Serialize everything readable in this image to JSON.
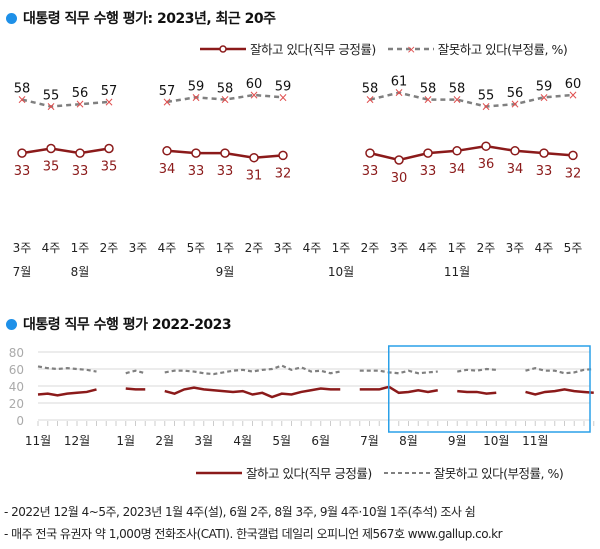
{
  "colors": {
    "accent": "#1e90e8",
    "approve": "#8b1a1a",
    "disapprove": "#808080",
    "marker_x": "#e05050",
    "highlight_box": "#2aa0e8",
    "grid": "#d8d8d8"
  },
  "chart_data": [
    {
      "type": "line",
      "title": "대통령 직무 수행 평가: 2023년, 최근 20주",
      "x_week_labels": [
        "3주",
        "4주",
        "1주",
        "2주",
        "3주",
        "4주",
        "5주",
        "1주",
        "2주",
        "3주",
        "4주",
        "1주",
        "2주",
        "3주",
        "4주",
        "1주",
        "2주",
        "3주",
        "4주",
        "5주"
      ],
      "x_month_labels": [
        {
          "index": 0,
          "label": "7월"
        },
        {
          "index": 2,
          "label": "8월"
        },
        {
          "index": 7,
          "label": "9월"
        },
        {
          "index": 11,
          "label": "10월"
        },
        {
          "index": 15,
          "label": "11월"
        }
      ],
      "series": [
        {
          "name": "잘하고 있다(직무 긍정률)",
          "values": [
            33,
            35,
            33,
            35,
            null,
            34,
            33,
            33,
            31,
            32,
            null,
            null,
            33,
            30,
            33,
            34,
            36,
            34,
            33,
            32
          ]
        },
        {
          "name": "잘못하고 있다(부정률, %)",
          "values": [
            58,
            55,
            56,
            57,
            null,
            57,
            59,
            58,
            60,
            59,
            null,
            null,
            58,
            61,
            58,
            58,
            55,
            56,
            59,
            60
          ]
        }
      ],
      "legend_placement": "top-right",
      "grid": false
    },
    {
      "type": "line",
      "title": "대통령 직무 수행 평가 2022-2023",
      "ylim": [
        0,
        80
      ],
      "y_ticks": [
        0,
        20,
        40,
        60,
        80
      ],
      "x_month_labels": [
        {
          "index": 0,
          "label": "11월"
        },
        {
          "index": 4,
          "label": "12월"
        },
        {
          "index": 9,
          "label": "1월"
        },
        {
          "index": 13,
          "label": "2월"
        },
        {
          "index": 17,
          "label": "3월"
        },
        {
          "index": 21,
          "label": "4월"
        },
        {
          "index": 25,
          "label": "5월"
        },
        {
          "index": 29,
          "label": "6월"
        },
        {
          "index": 34,
          "label": "7월"
        },
        {
          "index": 38,
          "label": "8월"
        },
        {
          "index": 43,
          "label": "9월"
        },
        {
          "index": 47,
          "label": "10월"
        },
        {
          "index": 51,
          "label": "11월"
        }
      ],
      "series": [
        {
          "name": "잘하고 있다(직무 긍정률)",
          "values": [
            30,
            31,
            29,
            31,
            32,
            33,
            36,
            null,
            null,
            37,
            36,
            36,
            null,
            34,
            31,
            36,
            38,
            36,
            35,
            34,
            33,
            34,
            30,
            32,
            27,
            31,
            30,
            33,
            35,
            37,
            36,
            36,
            null,
            36,
            36,
            36,
            39,
            32,
            33,
            35,
            33,
            35,
            null,
            34,
            33,
            33,
            31,
            32,
            null,
            null,
            33,
            30,
            33,
            34,
            36,
            34,
            33,
            32
          ]
        },
        {
          "name": "잘못하고 있다(부정률, %)",
          "values": [
            63,
            61,
            60,
            61,
            60,
            59,
            57,
            null,
            null,
            55,
            58,
            55,
            null,
            56,
            58,
            58,
            57,
            55,
            54,
            56,
            58,
            59,
            57,
            59,
            60,
            64,
            59,
            62,
            57,
            58,
            55,
            57,
            null,
            58,
            58,
            58,
            56,
            55,
            58,
            55,
            56,
            57,
            null,
            57,
            59,
            58,
            60,
            59,
            null,
            null,
            58,
            61,
            58,
            58,
            55,
            56,
            59,
            60
          ]
        }
      ],
      "highlight": "최근 20주",
      "grid": true,
      "legend_placement": "bottom-right"
    }
  ],
  "footnotes": [
    "- 2022년 12월 4~5주, 2023년 1월 4주(설), 6월 2주, 8월 3주, 9월 4주·10월 1주(추석) 조사 쉼",
    "- 매주 전국 유권자 약 1,000명 전화조사(CATI). 한국갤럽 데일리 오피니언 제567호 www.gallup.co.kr"
  ]
}
